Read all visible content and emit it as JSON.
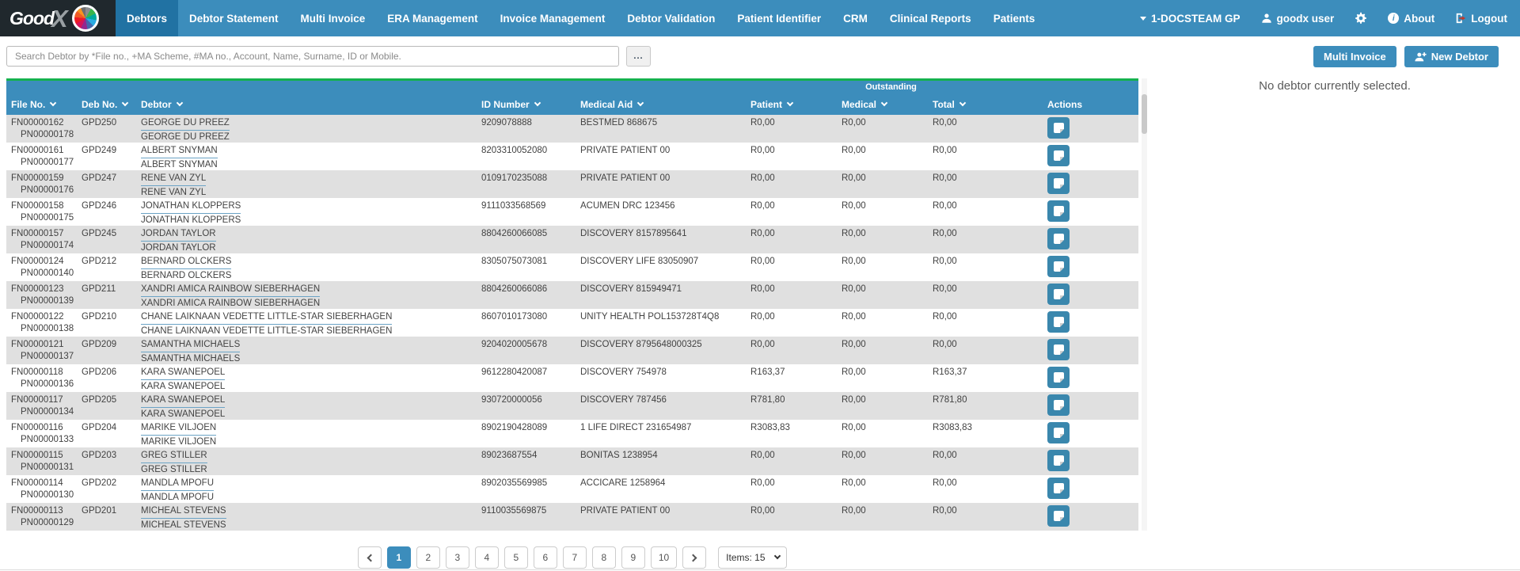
{
  "brand": {
    "good": "Good",
    "x": "X"
  },
  "nav": {
    "items": [
      {
        "label": "Debtors",
        "active": true
      },
      {
        "label": "Debtor Statement",
        "active": false
      },
      {
        "label": "Multi Invoice",
        "active": false
      },
      {
        "label": "ERA Management",
        "active": false
      },
      {
        "label": "Invoice Management",
        "active": false
      },
      {
        "label": "Debtor Validation",
        "active": false
      },
      {
        "label": "Patient Identifier",
        "active": false
      },
      {
        "label": "CRM",
        "active": false
      },
      {
        "label": "Clinical Reports",
        "active": false
      },
      {
        "label": "Patients",
        "active": false
      }
    ],
    "right": {
      "practice": "1-DOCSTEAM GP",
      "user": "goodx user",
      "about": "About",
      "logout": "Logout"
    }
  },
  "toolbar": {
    "search_placeholder": "Search Debtor by *File no., +MA Scheme, #MA no., Account, Name, Surname, ID or Mobile.",
    "more_label": "...",
    "multi_invoice_label": "Multi Invoice",
    "new_debtor_label": "New Debtor"
  },
  "panel": {
    "empty_message": "No debtor currently selected."
  },
  "table": {
    "group_header": "Outstanding",
    "columns": [
      {
        "label": "File No.",
        "sortable": true
      },
      {
        "label": "Deb No.",
        "sortable": true
      },
      {
        "label": "Debtor",
        "sortable": true
      },
      {
        "label": "ID Number",
        "sortable": true
      },
      {
        "label": "Medical Aid",
        "sortable": true
      },
      {
        "label": "Patient",
        "sortable": true
      },
      {
        "label": "Medical",
        "sortable": true
      },
      {
        "label": "Total",
        "sortable": true
      },
      {
        "label": "Actions",
        "sortable": false
      }
    ],
    "rows": [
      {
        "file_no": "FN00000162",
        "patient_no": "PN00000178",
        "deb_no": "GPD250",
        "name": "GEORGE DU PREEZ",
        "id_number": "9209078888",
        "medical_aid": "BESTMED 868675",
        "patient": "R0,00",
        "medical": "R0,00",
        "total": "R0,00"
      },
      {
        "file_no": "FN00000161",
        "patient_no": "PN00000177",
        "deb_no": "GPD249",
        "name": "ALBERT SNYMAN",
        "id_number": "8203310052080",
        "medical_aid": "PRIVATE PATIENT 00",
        "patient": "R0,00",
        "medical": "R0,00",
        "total": "R0,00"
      },
      {
        "file_no": "FN00000159",
        "patient_no": "PN00000176",
        "deb_no": "GPD247",
        "name": "RENE VAN ZYL",
        "id_number": "0109170235088",
        "medical_aid": "PRIVATE PATIENT 00",
        "patient": "R0,00",
        "medical": "R0,00",
        "total": "R0,00"
      },
      {
        "file_no": "FN00000158",
        "patient_no": "PN00000175",
        "deb_no": "GPD246",
        "name": "JONATHAN KLOPPERS",
        "id_number": "9111033568569",
        "medical_aid": "ACUMEN DRC 123456",
        "patient": "R0,00",
        "medical": "R0,00",
        "total": "R0,00"
      },
      {
        "file_no": "FN00000157",
        "patient_no": "PN00000174",
        "deb_no": "GPD245",
        "name": "JORDAN TAYLOR",
        "id_number": "8804260066085",
        "medical_aid": "DISCOVERY 8157895641",
        "patient": "R0,00",
        "medical": "R0,00",
        "total": "R0,00"
      },
      {
        "file_no": "FN00000124",
        "patient_no": "PN00000140",
        "deb_no": "GPD212",
        "name": "BERNARD OLCKERS",
        "id_number": "8305075073081",
        "medical_aid": "DISCOVERY LIFE 83050907",
        "patient": "R0,00",
        "medical": "R0,00",
        "total": "R0,00"
      },
      {
        "file_no": "FN00000123",
        "patient_no": "PN00000139",
        "deb_no": "GPD211",
        "name": "XANDRI AMICA RAINBOW SIEBERHAGEN",
        "id_number": "8804260066086",
        "medical_aid": "DISCOVERY 815949471",
        "patient": "R0,00",
        "medical": "R0,00",
        "total": "R0,00"
      },
      {
        "file_no": "FN00000122",
        "patient_no": "PN00000138",
        "deb_no": "GPD210",
        "name": "CHANE LAIKNAAN VEDETTE LITTLE-STAR SIEBERHAGEN",
        "id_number": "8607010173080",
        "medical_aid": "UNITY HEALTH POL153728T4Q8",
        "patient": "R0,00",
        "medical": "R0,00",
        "total": "R0,00"
      },
      {
        "file_no": "FN00000121",
        "patient_no": "PN00000137",
        "deb_no": "GPD209",
        "name": "SAMANTHA MICHAELS",
        "id_number": "9204020005678",
        "medical_aid": "DISCOVERY 8795648000325",
        "patient": "R0,00",
        "medical": "R0,00",
        "total": "R0,00"
      },
      {
        "file_no": "FN00000118",
        "patient_no": "PN00000136",
        "deb_no": "GPD206",
        "name": "KARA SWANEPOEL",
        "id_number": "9612280420087",
        "medical_aid": "DISCOVERY 754978",
        "patient": "R163,37",
        "medical": "R0,00",
        "total": "R163,37"
      },
      {
        "file_no": "FN00000117",
        "patient_no": "PN00000134",
        "deb_no": "GPD205",
        "name": "KARA SWANEPOEL",
        "id_number": "930720000056",
        "medical_aid": "DISCOVERY 787456",
        "patient": "R781,80",
        "medical": "R0,00",
        "total": "R781,80"
      },
      {
        "file_no": "FN00000116",
        "patient_no": "PN00000133",
        "deb_no": "GPD204",
        "name": "MARIKE VILJOEN",
        "id_number": "8902190428089",
        "medical_aid": "1 LIFE DIRECT 231654987",
        "patient": "R3083,83",
        "medical": "R0,00",
        "total": "R3083,83"
      },
      {
        "file_no": "FN00000115",
        "patient_no": "PN00000131",
        "deb_no": "GPD203",
        "name": "GREG STILLER",
        "id_number": "89023687554",
        "medical_aid": "BONITAS 1238954",
        "patient": "R0,00",
        "medical": "R0,00",
        "total": "R0,00"
      },
      {
        "file_no": "FN00000114",
        "patient_no": "PN00000130",
        "deb_no": "GPD202",
        "name": "MANDLA MPOFU",
        "id_number": "8902035569985",
        "medical_aid": "ACCICARE 1258964",
        "patient": "R0,00",
        "medical": "R0,00",
        "total": "R0,00"
      },
      {
        "file_no": "FN00000113",
        "patient_no": "PN00000129",
        "deb_no": "GPD201",
        "name": "MICHEAL STEVENS",
        "id_number": "9110035569875",
        "medical_aid": "PRIVATE PATIENT 00",
        "patient": "R0,00",
        "medical": "R0,00",
        "total": "R0,00"
      }
    ]
  },
  "pagination": {
    "pages": [
      "1",
      "2",
      "3",
      "4",
      "5",
      "6",
      "7",
      "8",
      "9",
      "10"
    ],
    "active_page": "1",
    "items_label": "Items: 15"
  },
  "colors": {
    "navbar_blue": "#3c8dbc",
    "active_tab_blue": "#2172a3",
    "logo_dark": "#20282d",
    "table_top_green": "#15b14f",
    "row_alt_gray": "#e0e0e0",
    "action_button_blue": "#3a87ad",
    "logout_red": "#c0392b"
  },
  "icons": {
    "pinwheel": "goodx-color-wheel",
    "caret_down": "caret-down",
    "user": "person-silhouette",
    "gear": "settings-gear",
    "info": "info-circle",
    "logout": "door-exit-arrow",
    "user_plus": "person-plus",
    "sort": "chevron-down",
    "action": "note-sheet"
  }
}
